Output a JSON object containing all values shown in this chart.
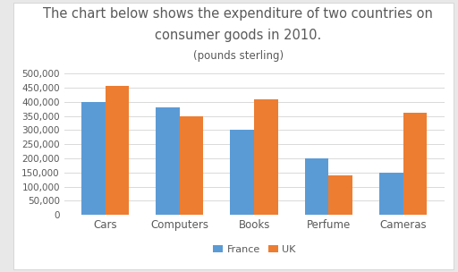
{
  "title_line1": "The chart below shows the expenditure of two countries on",
  "title_line2": "consumer goods in 2010.",
  "title_line3": "(pounds sterling)",
  "categories": [
    "Cars",
    "Computers",
    "Books",
    "Perfume",
    "Cameras"
  ],
  "france_values": [
    400000,
    380000,
    300000,
    200000,
    150000
  ],
  "uk_values": [
    455000,
    350000,
    408000,
    140000,
    360000
  ],
  "france_color": "#5b9bd5",
  "uk_color": "#ed7d31",
  "ylim": [
    0,
    500000
  ],
  "yticks": [
    0,
    50000,
    100000,
    150000,
    200000,
    250000,
    300000,
    350000,
    400000,
    450000,
    500000
  ],
  "legend_labels": [
    "France",
    "UK"
  ],
  "outer_bg_color": "#e8e8e8",
  "card_bg_color": "#ffffff",
  "title_color": "#595959",
  "title_fontsize": 10.5,
  "subtitle_fontsize": 8.5,
  "tick_fontsize": 7.5,
  "xlabel_fontsize": 8.5,
  "bar_width": 0.32,
  "grid_color": "#d9d9d9"
}
